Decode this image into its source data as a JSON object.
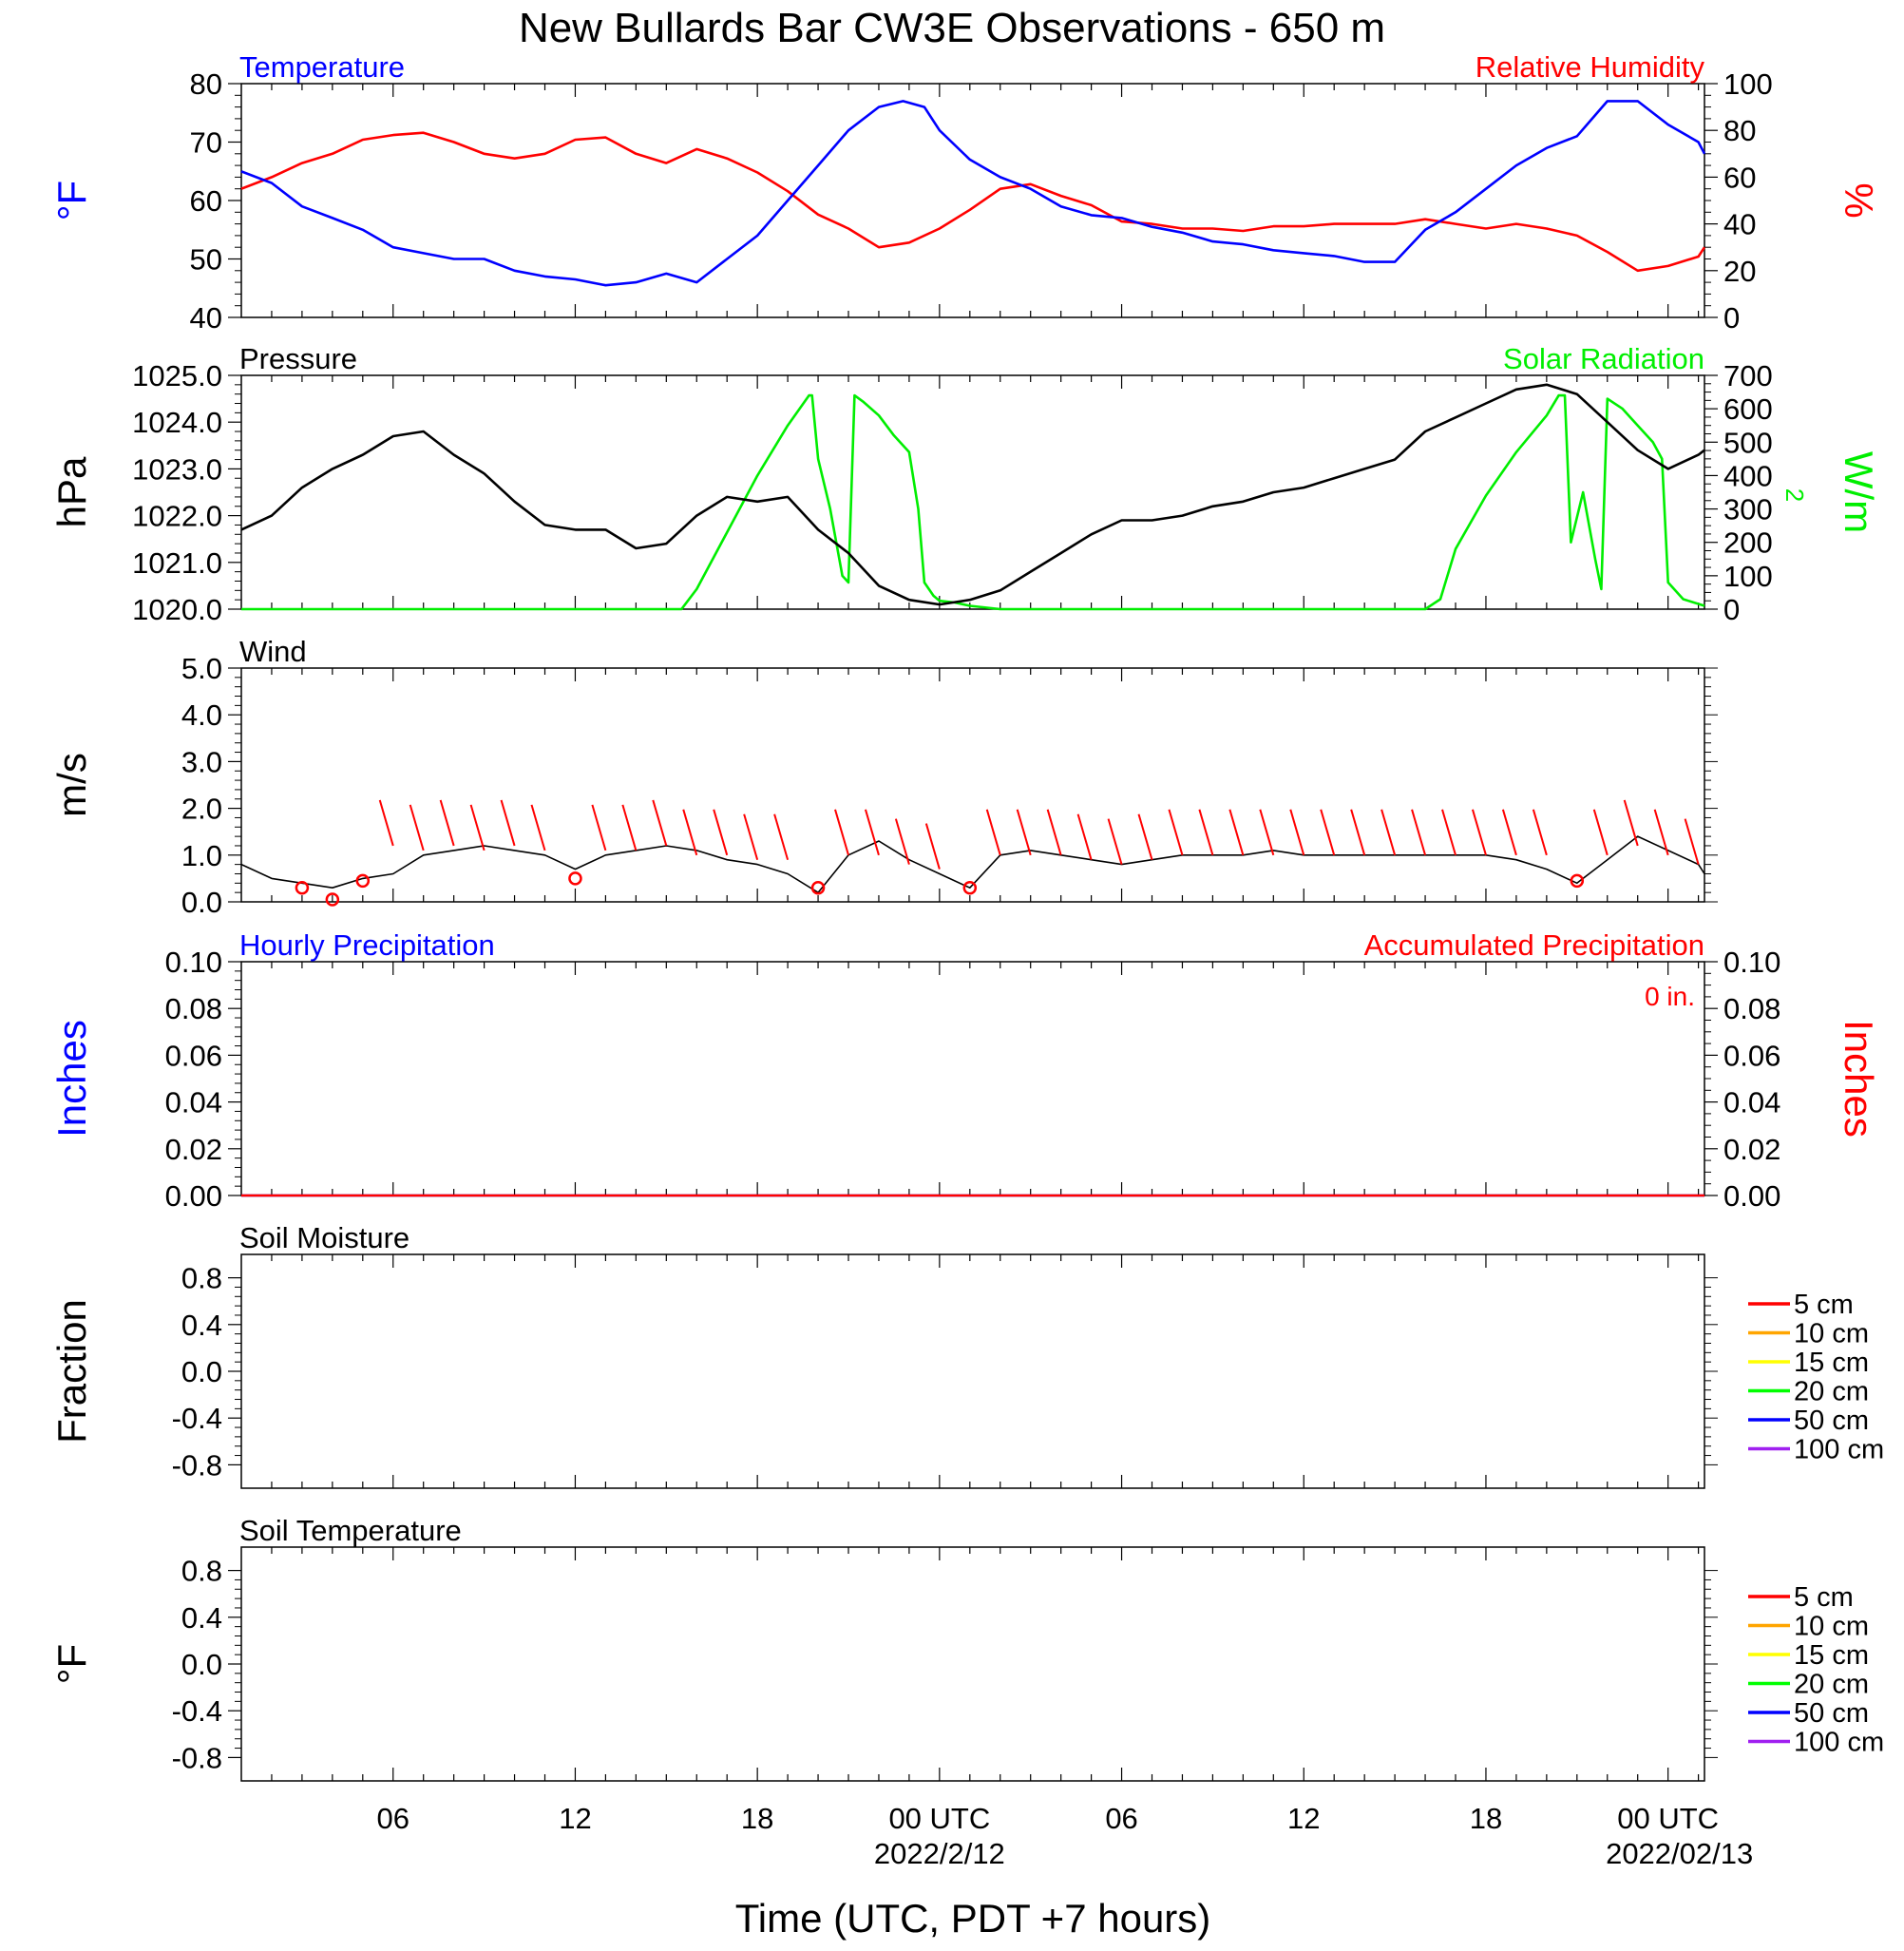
{
  "title": "New Bullards Bar CW3E Observations - 650 m",
  "x_axis": {
    "label": "Time (UTC, PDT +7 hours)",
    "tick_labels": [
      {
        "t": 6,
        "label": "06"
      },
      {
        "t": 12,
        "label": "12"
      },
      {
        "t": 18,
        "label": "18"
      },
      {
        "t": 24,
        "label": "00 UTC"
      },
      {
        "t": 30,
        "label": "06"
      },
      {
        "t": 36,
        "label": "12"
      },
      {
        "t": 42,
        "label": "18"
      },
      {
        "t": 48,
        "label": "00 UTC"
      }
    ],
    "date_labels": [
      {
        "t": 24,
        "label": "2022/2/12"
      },
      {
        "t": 48,
        "label": "2022/02/13"
      }
    ],
    "range_hours_from_2022_02_11_00UTC": [
      1,
      49.2
    ]
  },
  "colors": {
    "temperature": "#0000ff",
    "humidity": "#ff0000",
    "pressure": "#000000",
    "solar": "#00ee00",
    "wind": "#000000",
    "wind_barb": "#ff0000",
    "precip_hourly": "#0000ff",
    "precip_accum": "#ff0000"
  },
  "panels": {
    "temperature": {
      "title_left": "Temperature",
      "title_right": "Relative Humidity",
      "ylabel_left": "°F",
      "ylabel_right": "%",
      "yticks_left": [
        "80",
        "70",
        "60",
        "50",
        "40"
      ],
      "yticks_right": [
        "100",
        "80",
        "60",
        "40",
        "20",
        "0"
      ]
    },
    "pressure": {
      "title_left": "Pressure",
      "title_right": "Solar Radiation",
      "ylabel_left": "hPa",
      "ylabel_right": "W/m",
      "ylabel_right_sup": "2",
      "yticks_left": [
        "1025.0",
        "1024.0",
        "1023.0",
        "1022.0",
        "1021.0",
        "1020.0"
      ],
      "yticks_right": [
        "700",
        "600",
        "500",
        "400",
        "300",
        "200",
        "100",
        "0"
      ]
    },
    "wind": {
      "title_left": "Wind",
      "ylabel_left": "m/s",
      "yticks_left": [
        "5.0",
        "4.0",
        "3.0",
        "2.0",
        "1.0",
        "0.0"
      ]
    },
    "precip": {
      "title_left": "Hourly Precipitation",
      "title_right": "Accumulated Precipitation",
      "total_label": "0 in.",
      "ylabel_left": "Inches",
      "ylabel_right": "Inches",
      "yticks_left": [
        "0.10",
        "0.08",
        "0.06",
        "0.04",
        "0.02",
        "0.00"
      ],
      "yticks_right": [
        "0.10",
        "0.08",
        "0.06",
        "0.04",
        "0.02",
        "0.00"
      ]
    },
    "soil_moisture": {
      "title_left": "Soil Moisture",
      "ylabel_left": "Fraction",
      "yticks_left": [
        "0.8",
        "0.4",
        "0.0",
        "-0.4",
        "-0.8"
      ]
    },
    "soil_temperature": {
      "title_left": "Soil Temperature",
      "ylabel_left": "°F",
      "yticks_left": [
        "0.8",
        "0.4",
        "0.0",
        "-0.4",
        "-0.8"
      ]
    }
  },
  "soil_legend": [
    {
      "label": "5 cm",
      "color": "#ff0000"
    },
    {
      "label": "10 cm",
      "color": "#ffa500"
    },
    {
      "label": "15 cm",
      "color": "#ffff00"
    },
    {
      "label": "20 cm",
      "color": "#00ff00"
    },
    {
      "label": "50 cm",
      "color": "#0000ff"
    },
    {
      "label": "100 cm",
      "color": "#a020f0"
    }
  ],
  "chart_data": [
    {
      "type": "line",
      "title": "Temperature",
      "ylabel": "°F",
      "ylim": [
        40,
        80
      ],
      "series": [
        {
          "name": "Temperature",
          "axis": "left",
          "x": [
            1,
            2,
            3,
            4,
            5,
            6,
            7,
            8,
            9,
            10,
            11,
            12,
            13,
            14,
            15,
            16,
            17,
            18,
            19,
            20,
            21,
            22,
            22.8,
            23.5,
            24,
            25,
            26,
            27,
            28,
            29,
            30,
            31,
            32,
            33,
            34,
            35,
            36,
            37,
            38,
            39,
            40,
            41,
            42,
            43,
            44,
            45,
            46,
            47,
            48,
            49,
            49.2
          ],
          "y": [
            65,
            63,
            59,
            57,
            55,
            52,
            51,
            50,
            50,
            48,
            47,
            46.5,
            45.5,
            46,
            47.5,
            46,
            50,
            54,
            60,
            66,
            72,
            76,
            77,
            76,
            72,
            67,
            64,
            62,
            59,
            57.5,
            57,
            55.5,
            54.5,
            53,
            52.5,
            51.5,
            51,
            50.5,
            49.5,
            49.5,
            55,
            58,
            62,
            66,
            69,
            71,
            77,
            77,
            73,
            70,
            68
          ]
        },
        {
          "name": "Relative Humidity",
          "axis": "right",
          "x": [
            1,
            2,
            3,
            4,
            5,
            6,
            7,
            8,
            9,
            10,
            11,
            12,
            13,
            14,
            15,
            16,
            17,
            18,
            19,
            20,
            21,
            22,
            23,
            24,
            25,
            26,
            27,
            28,
            29,
            30,
            31,
            32,
            33,
            34,
            35,
            36,
            37,
            38,
            39,
            40,
            41,
            42,
            43,
            44,
            45,
            46,
            47,
            48,
            49,
            49.2
          ],
          "y": [
            55,
            60,
            66,
            70,
            76,
            78,
            79,
            75,
            70,
            68,
            70,
            76,
            77,
            70,
            66,
            72,
            68,
            62,
            54,
            44,
            38,
            30,
            32,
            38,
            46,
            55,
            57,
            52,
            48,
            41,
            40,
            38,
            38,
            37,
            39,
            39,
            40,
            40,
            40,
            42,
            40,
            38,
            40,
            38,
            35,
            28,
            20,
            22,
            26,
            30
          ]
        }
      ],
      "ylim_right": [
        0,
        100
      ]
    },
    {
      "type": "line",
      "title": "Pressure",
      "ylabel": "hPa",
      "ylim": [
        1020,
        1025
      ],
      "series": [
        {
          "name": "Pressure",
          "axis": "left",
          "x": [
            1,
            2,
            3,
            4,
            5,
            6,
            7,
            8,
            9,
            10,
            11,
            12,
            13,
            14,
            15,
            16,
            17,
            18,
            19,
            20,
            21,
            22,
            23,
            24,
            25,
            26,
            27,
            28,
            29,
            30,
            31,
            32,
            33,
            34,
            35,
            36,
            37,
            38,
            39,
            40,
            41,
            42,
            43,
            44,
            45,
            46,
            47,
            48,
            49,
            49.2
          ],
          "y": [
            1021.7,
            1022.0,
            1022.6,
            1023.0,
            1023.3,
            1023.7,
            1023.8,
            1023.3,
            1022.9,
            1022.3,
            1021.8,
            1021.7,
            1021.7,
            1021.3,
            1021.4,
            1022.0,
            1022.4,
            1022.3,
            1022.4,
            1021.7,
            1021.2,
            1020.5,
            1020.2,
            1020.1,
            1020.2,
            1020.4,
            1020.8,
            1021.2,
            1021.6,
            1021.9,
            1021.9,
            1022.0,
            1022.2,
            1022.3,
            1022.5,
            1022.6,
            1022.8,
            1023.0,
            1023.2,
            1023.8,
            1024.1,
            1024.4,
            1024.7,
            1024.8,
            1024.6,
            1024.0,
            1023.4,
            1023.0,
            1023.3,
            1023.4
          ]
        },
        {
          "name": "Solar Radiation",
          "axis": "right",
          "x": [
            1,
            15.5,
            16,
            17,
            18,
            19,
            19.7,
            19.8,
            20,
            20.4,
            20.8,
            21.0,
            21.2,
            21.5,
            22,
            22.5,
            23,
            23.3,
            23.5,
            23.8,
            24,
            24.5,
            25,
            26,
            40,
            40.5,
            41,
            42,
            43,
            44,
            44.4,
            44.6,
            44.8,
            45.2,
            45.6,
            45.8,
            46.0,
            46.5,
            47,
            47.5,
            47.8,
            48,
            48.5,
            49.2
          ],
          "y": [
            0,
            0,
            60,
            230,
            400,
            550,
            640,
            640,
            450,
            300,
            100,
            80,
            640,
            620,
            580,
            520,
            470,
            300,
            80,
            40,
            25,
            20,
            10,
            0,
            0,
            30,
            180,
            340,
            470,
            580,
            640,
            640,
            200,
            350,
            150,
            60,
            630,
            600,
            550,
            500,
            450,
            80,
            30,
            10
          ]
        }
      ],
      "ylim_right": [
        0,
        700
      ]
    },
    {
      "type": "line",
      "title": "Wind",
      "ylabel": "m/s",
      "ylim": [
        0,
        5
      ],
      "series": [
        {
          "name": "Wind",
          "axis": "left",
          "x": [
            1,
            2,
            3,
            4,
            5,
            6,
            7,
            8,
            9,
            10,
            11,
            12,
            13,
            14,
            15,
            16,
            17,
            18,
            19,
            20,
            21,
            22,
            23,
            24,
            25,
            26,
            27,
            28,
            29,
            30,
            31,
            32,
            33,
            34,
            35,
            36,
            37,
            38,
            39,
            40,
            41,
            42,
            43,
            44,
            45,
            46,
            47,
            48,
            49,
            49.2
          ],
          "y": [
            0.8,
            0.5,
            0.4,
            0.3,
            0.5,
            0.6,
            1.0,
            1.1,
            1.2,
            1.1,
            1.0,
            0.7,
            1.0,
            1.1,
            1.2,
            1.1,
            0.9,
            0.8,
            0.6,
            0.2,
            1.0,
            1.3,
            0.9,
            0.6,
            0.3,
            1.0,
            1.1,
            1.0,
            0.9,
            0.8,
            0.9,
            1.0,
            1.0,
            1.0,
            1.1,
            1.0,
            1.0,
            1.0,
            1.0,
            1.0,
            1.0,
            1.0,
            0.9,
            0.7,
            0.4,
            0.9,
            1.4,
            1.1,
            0.8,
            0.6
          ]
        },
        {
          "name": "Wind barbs",
          "axis": "left",
          "x": [
            3,
            4,
            5,
            6,
            7,
            8,
            9,
            10,
            11,
            12,
            13,
            14,
            15,
            16,
            17,
            18,
            19,
            20,
            21,
            22,
            23,
            24,
            25,
            26,
            27,
            28,
            29,
            30,
            31,
            32,
            33,
            34,
            35,
            36,
            37,
            38,
            39,
            40,
            41,
            42,
            43,
            44,
            45,
            46,
            47,
            48,
            49
          ],
          "y": [
            0.3,
            0.05,
            0.45,
            1.2,
            1.1,
            1.2,
            1.1,
            1.2,
            1.1,
            0.5,
            1.1,
            1.1,
            1.2,
            1.0,
            1.0,
            0.9,
            0.9,
            0.3,
            1.0,
            1.0,
            0.8,
            0.7,
            0.3,
            1.0,
            1.0,
            1.0,
            0.9,
            0.8,
            0.9,
            1.0,
            1.0,
            1.0,
            1.0,
            1.0,
            1.0,
            1.0,
            1.0,
            1.0,
            1.0,
            1.0,
            1.0,
            1.0,
            0.45,
            1.0,
            1.2,
            1.0,
            0.8
          ],
          "calm": [
            true,
            true,
            true,
            false,
            false,
            false,
            false,
            false,
            false,
            true,
            false,
            false,
            false,
            false,
            false,
            false,
            false,
            true,
            false,
            false,
            false,
            false,
            true,
            false,
            false,
            false,
            false,
            false,
            false,
            false,
            false,
            false,
            false,
            false,
            false,
            false,
            false,
            false,
            false,
            false,
            false,
            false,
            true,
            false,
            false,
            false,
            false
          ]
        }
      ]
    },
    {
      "type": "line",
      "title": "Hourly Precipitation",
      "ylabel": "Inches",
      "ylim": [
        0,
        0.1
      ],
      "series": [
        {
          "name": "Hourly Precipitation",
          "axis": "left",
          "x": [
            1,
            49.2
          ],
          "y": [
            0,
            0
          ]
        },
        {
          "name": "Accumulated Precipitation",
          "axis": "right",
          "x": [
            1,
            49.2
          ],
          "y": [
            0,
            0
          ]
        }
      ]
    },
    {
      "type": "line",
      "title": "Soil Moisture",
      "ylabel": "Fraction",
      "ylim": [
        -1,
        1
      ],
      "series": []
    },
    {
      "type": "line",
      "title": "Soil Temperature",
      "ylabel": "°F",
      "ylim": [
        -1,
        1
      ],
      "series": []
    }
  ]
}
